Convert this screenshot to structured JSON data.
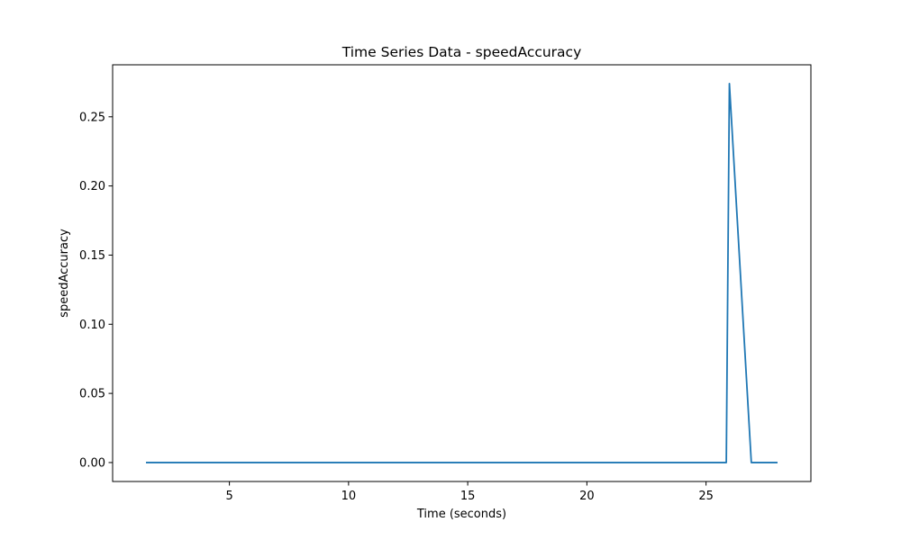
{
  "chart_data": {
    "type": "line",
    "title": "Time Series Data - speedAccuracy",
    "xlabel": "Time (seconds)",
    "ylabel": "speedAccuracy",
    "xlim": [
      0.1,
      29.4
    ],
    "ylim": [
      -0.0137,
      0.2876
    ],
    "x_ticks": [
      5,
      10,
      15,
      20,
      25
    ],
    "x_tick_labels": [
      "5",
      "10",
      "15",
      "20",
      "25"
    ],
    "y_ticks": [
      0.0,
      0.05,
      0.1,
      0.15,
      0.2,
      0.25
    ],
    "y_tick_labels": [
      "0.00",
      "0.05",
      "0.10",
      "0.15",
      "0.20",
      "0.25"
    ],
    "grid": false,
    "series": [
      {
        "color": "#1f77b4",
        "x": [
          1.5,
          25.85,
          25.98,
          26.9,
          28.0
        ],
        "y": [
          0.0,
          0.0,
          0.274,
          0.0,
          0.0
        ]
      }
    ]
  }
}
